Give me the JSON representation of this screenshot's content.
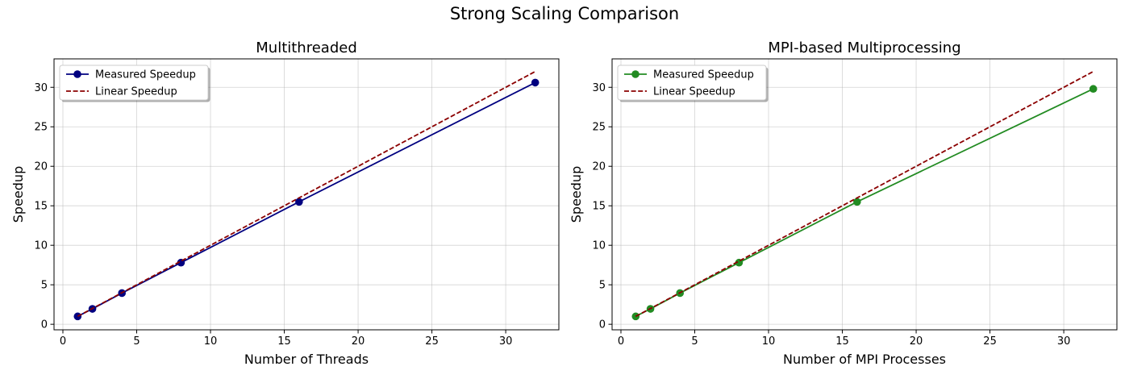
{
  "figure": {
    "title": "Strong Scaling Comparison"
  },
  "chart_data": [
    {
      "type": "line",
      "title": "Multithreaded",
      "xlabel": "Number of Threads",
      "ylabel": "Speedup",
      "xlim": [
        -0.6,
        33.6
      ],
      "ylim": [
        -0.7,
        33.6
      ],
      "xticks": [
        0,
        5,
        10,
        15,
        20,
        25,
        30
      ],
      "yticks": [
        0,
        5,
        10,
        15,
        20,
        25,
        30
      ],
      "grid": true,
      "legend_position": "top-left",
      "series": [
        {
          "name": "Measured Speedup",
          "style": "solid-with-markers",
          "color": "#000080",
          "x": [
            1,
            2,
            4,
            8,
            16,
            32
          ],
          "y": [
            1.0,
            1.95,
            3.95,
            7.8,
            15.5,
            30.6
          ]
        },
        {
          "name": "Linear Speedup",
          "style": "dashed",
          "color": "#8b0000",
          "x": [
            1,
            2,
            4,
            8,
            16,
            32
          ],
          "y": [
            1,
            2,
            4,
            8,
            16,
            32
          ]
        }
      ]
    },
    {
      "type": "line",
      "title": "MPI-based Multiprocessing",
      "xlabel": "Number of MPI Processes",
      "ylabel": "Speedup",
      "xlim": [
        -0.6,
        33.6
      ],
      "ylim": [
        -0.7,
        33.6
      ],
      "xticks": [
        0,
        5,
        10,
        15,
        20,
        25,
        30
      ],
      "yticks": [
        0,
        5,
        10,
        15,
        20,
        25,
        30
      ],
      "grid": true,
      "legend_position": "top-left",
      "series": [
        {
          "name": "Measured Speedup",
          "style": "solid-with-markers",
          "color": "#228b22",
          "x": [
            1,
            2,
            4,
            8,
            16,
            32
          ],
          "y": [
            1.0,
            1.95,
            3.95,
            7.8,
            15.5,
            29.8
          ]
        },
        {
          "name": "Linear Speedup",
          "style": "dashed",
          "color": "#8b0000",
          "x": [
            1,
            2,
            4,
            8,
            16,
            32
          ],
          "y": [
            1,
            2,
            4,
            8,
            16,
            32
          ]
        }
      ]
    }
  ]
}
